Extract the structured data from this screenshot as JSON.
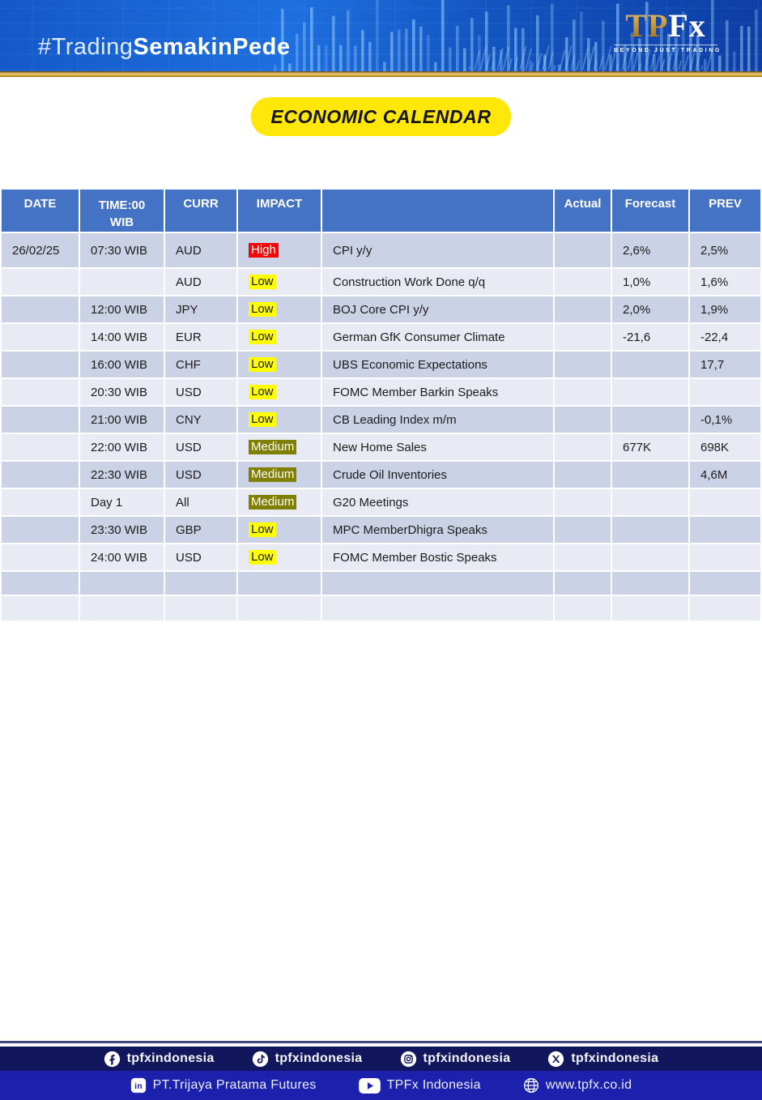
{
  "banner": {
    "hashtag_light": "#Trading",
    "hashtag_bold": "SemakinPede",
    "logo": {
      "tp": "TP",
      "fx": "Fx",
      "tagline": "BEYOND JUST TRADING"
    }
  },
  "title": "ECONOMIC CALENDAR",
  "table": {
    "headers": {
      "date": "DATE",
      "time": "TIME:00 WIB",
      "curr": "CURR",
      "impact": "IMPACT",
      "event": "",
      "actual": "Actual",
      "forecast": "Forecast",
      "prev": "PREV"
    },
    "rows": [
      {
        "date": "26/02/25",
        "time": "07:30 WIB",
        "curr": "AUD",
        "impact": "High",
        "impact_level": "high",
        "event": "CPI y/y",
        "actual": "",
        "forecast": "2,6%",
        "prev": "2,5%"
      },
      {
        "date": "",
        "time": "",
        "curr": "AUD",
        "impact": "Low",
        "impact_level": "low",
        "event": "Construction Work Done q/q",
        "actual": "",
        "forecast": "1,0%",
        "prev": "1,6%"
      },
      {
        "date": "",
        "time": "12:00 WIB",
        "curr": "JPY",
        "impact": "Low",
        "impact_level": "low",
        "event": "BOJ Core CPI y/y",
        "actual": "",
        "forecast": "2,0%",
        "prev": "1,9%"
      },
      {
        "date": "",
        "time": "14:00 WIB",
        "curr": "EUR",
        "impact": "Low",
        "impact_level": "low",
        "event": "German GfK Consumer Climate",
        "actual": "",
        "forecast": "-21,6",
        "prev": "-22,4"
      },
      {
        "date": "",
        "time": "16:00 WIB",
        "curr": "CHF",
        "impact": "Low",
        "impact_level": "low",
        "event": "UBS Economic Expectations",
        "actual": "",
        "forecast": "",
        "prev": "17,7"
      },
      {
        "date": "",
        "time": "20:30 WIB",
        "curr": "USD",
        "impact": "Low",
        "impact_level": "low",
        "event": "FOMC Member Barkin Speaks",
        "actual": "",
        "forecast": "",
        "prev": ""
      },
      {
        "date": "",
        "time": "21:00 WIB",
        "curr": "CNY",
        "impact": "Low",
        "impact_level": "low",
        "event": "CB Leading Index m/m",
        "actual": "",
        "forecast": "",
        "prev": "-0,1%"
      },
      {
        "date": "",
        "time": "22:00 WIB",
        "curr": "USD",
        "impact": "Medium",
        "impact_level": "medium",
        "event": "New Home Sales",
        "actual": "",
        "forecast": "677K",
        "prev": "698K"
      },
      {
        "date": "",
        "time": "22:30 WIB",
        "curr": "USD",
        "impact": "Medium",
        "impact_level": "medium",
        "event": "Crude Oil Inventories",
        "actual": "",
        "forecast": "",
        "prev": "4,6M"
      },
      {
        "date": "",
        "time": "Day 1",
        "curr": "All",
        "impact": "Medium",
        "impact_level": "medium",
        "event": "G20 Meetings",
        "actual": "",
        "forecast": "",
        "prev": ""
      },
      {
        "date": "",
        "time": "23:30 WIB",
        "curr": "GBP",
        "impact": "Low",
        "impact_level": "low",
        "event": "MPC MemberDhigra Speaks",
        "actual": "",
        "forecast": "",
        "prev": ""
      },
      {
        "date": "",
        "time": "24:00 WIB",
        "curr": "USD",
        "impact": "Low",
        "impact_level": "low",
        "event": "FOMC Member Bostic Speaks",
        "actual": "",
        "forecast": "",
        "prev": ""
      },
      {
        "date": "",
        "time": "",
        "curr": "",
        "impact": "",
        "impact_level": "",
        "event": "",
        "actual": "",
        "forecast": "",
        "prev": ""
      },
      {
        "date": "",
        "time": "",
        "curr": "",
        "impact": "",
        "impact_level": "",
        "event": "",
        "actual": "",
        "forecast": "",
        "prev": ""
      }
    ]
  },
  "footer": {
    "row1": [
      {
        "icon": "facebook",
        "label": "tpfxindonesia"
      },
      {
        "icon": "tiktok",
        "label": "tpfxindonesia"
      },
      {
        "icon": "instagram",
        "label": "tpfxindonesia"
      },
      {
        "icon": "x",
        "label": "tpfxindonesia"
      }
    ],
    "row2": [
      {
        "icon": "linkedin",
        "label": "PT.Trijaya Pratama Futures"
      },
      {
        "icon": "youtube",
        "label": "TPFx Indonesia"
      },
      {
        "icon": "globe",
        "label": "www.tpfx.co.id"
      }
    ]
  },
  "colors": {
    "header_blue": "#4472C4",
    "row_dark": "#CCD2E6",
    "row_light": "#E9EBF4",
    "impact_high": "#FF0000",
    "impact_low": "#FFFF00",
    "impact_medium": "#7F7F00",
    "title_yellow": "#FFE70A",
    "banner_blue": "#1E6FE0",
    "gold": "#F0CD75",
    "footer_navy": "#12165C",
    "footer_blue": "#1B21AC"
  }
}
